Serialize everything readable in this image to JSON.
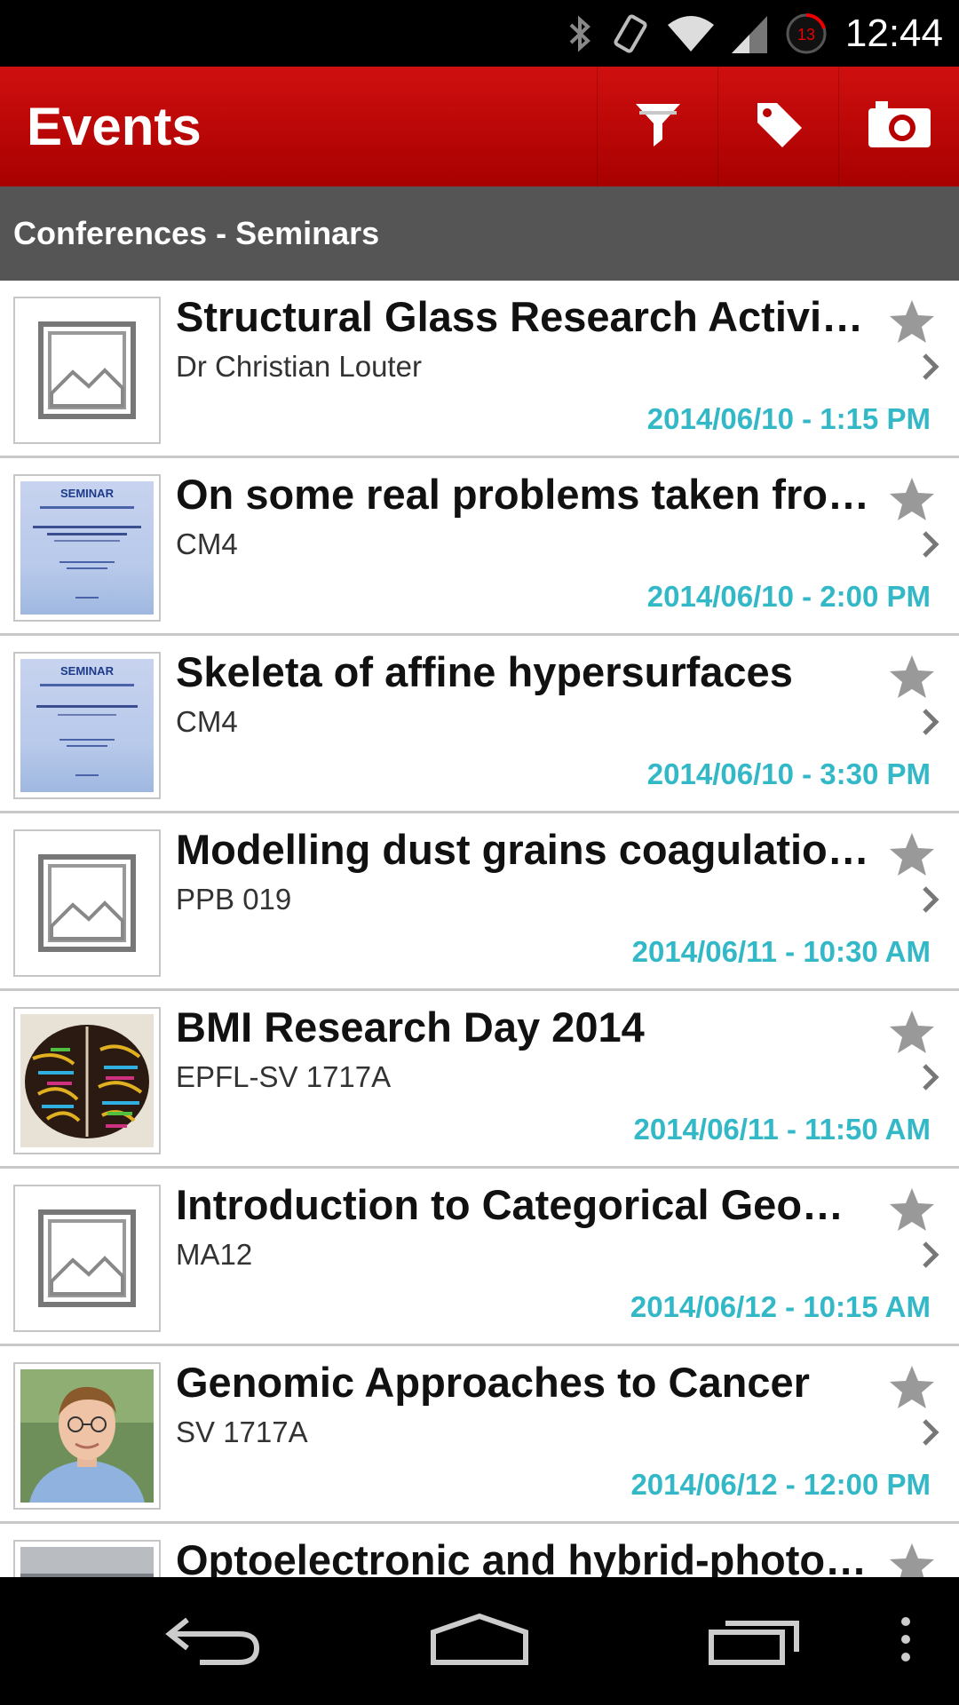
{
  "status_bar": {
    "time": "12:44",
    "icons": [
      "bluetooth-icon",
      "vibrate-icon",
      "wifi-icon",
      "signal-icon",
      "notification-badge-icon"
    ],
    "badge": "13"
  },
  "app_bar": {
    "title": "Events",
    "actions": [
      "filter-icon",
      "tag-icon",
      "camera-icon"
    ],
    "color": "#c00000"
  },
  "category": {
    "label": "Conferences - Seminars"
  },
  "events": [
    {
      "title": "Structural Glass Research Activiti…",
      "subtitle": " Dr Christian Louter",
      "datetime": "2014/06/10 - 1:15 PM",
      "thumb": "placeholder"
    },
    {
      "title": "On some real problems taken fro…",
      "subtitle": "CM4",
      "datetime": "2014/06/10 - 2:00 PM",
      "thumb": "poster",
      "poster_label": "SEMINAR"
    },
    {
      "title": "Skeleta of affine hypersurfaces",
      "subtitle": "CM4",
      "datetime": "2014/06/10 - 3:30 PM",
      "thumb": "poster",
      "poster_label": "SEMINAR"
    },
    {
      "title": "Modelling dust grains coagulatio…",
      "subtitle": "PPB 019",
      "datetime": "2014/06/11 - 10:30 AM",
      "thumb": "placeholder"
    },
    {
      "title": "BMI Research Day 2014",
      "subtitle": "EPFL-SV 1717A",
      "datetime": "2014/06/11 - 11:50 AM",
      "thumb": "brain"
    },
    {
      "title": "Introduction to Categorical Geom…",
      "subtitle": "MA12",
      "datetime": "2014/06/12 - 10:15 AM",
      "thumb": "placeholder"
    },
    {
      "title": "Genomic Approaches to Cancer",
      "subtitle": "SV 1717A",
      "datetime": "2014/06/12 - 12:00 PM",
      "thumb": "photo"
    },
    {
      "title": "Optoelectronic and hybrid-photov…",
      "subtitle": "",
      "datetime": "",
      "thumb": "photo"
    }
  ],
  "nav_bar": {
    "buttons": [
      "back-icon",
      "home-icon",
      "recents-icon",
      "menu-icon"
    ]
  },
  "colors": {
    "accent": "#33b8c7",
    "app_bar": "#c00000",
    "category_bar": "#555555"
  }
}
